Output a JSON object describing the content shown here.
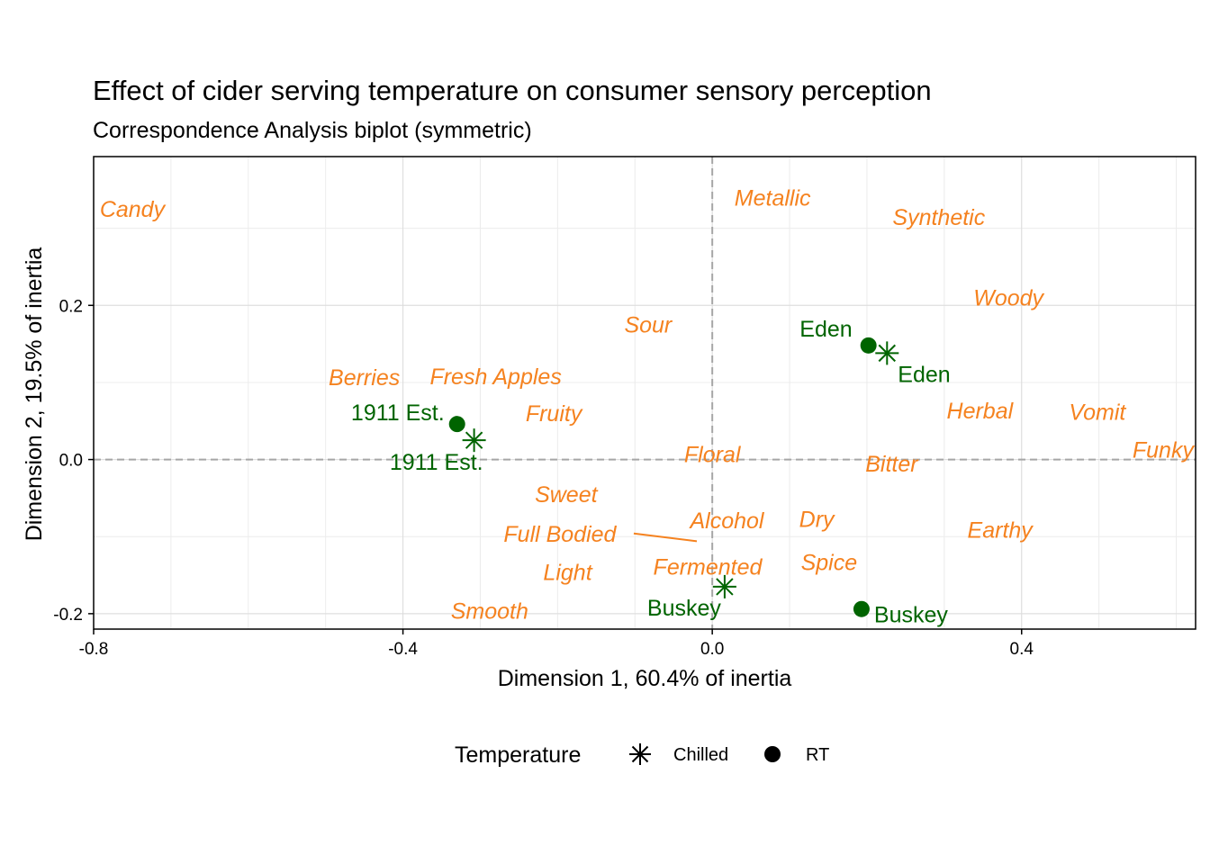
{
  "chart_data": {
    "type": "scatter",
    "title": "Effect of cider serving temperature on consumer sensory perception",
    "subtitle": "Correspondence Analysis biplot (symmetric)",
    "xlabel": "Dimension 1, 60.4% of inertia",
    "ylabel": "Dimension 2, 19.5% of inertia",
    "xlim": [
      -0.8,
      0.625
    ],
    "ylim": [
      -0.22,
      0.393
    ],
    "x_ticks": [
      -0.8,
      -0.4,
      0.0,
      0.4
    ],
    "x_tick_labels": [
      "-0.8",
      "-0.4",
      "0.0",
      "0.4"
    ],
    "y_ticks": [
      -0.2,
      0.0,
      0.2
    ],
    "y_tick_labels": [
      "-0.2",
      "0.0",
      "0.2"
    ],
    "grid": true,
    "reference_lines": {
      "x": 0,
      "y": 0,
      "style": "dashed"
    },
    "legend": {
      "title": "Temperature",
      "position": "bottom",
      "entries": [
        {
          "label": "Chilled",
          "shape": "asterisk"
        },
        {
          "label": "RT",
          "shape": "circle"
        }
      ]
    },
    "colors": {
      "attribute": "#f5821f",
      "cider": "#006400",
      "grid": "#dcdcdc",
      "ref_line": "#a6a6a6"
    },
    "attributes": [
      {
        "name": "Candy",
        "x": -0.75,
        "y": 0.325
      },
      {
        "name": "Metallic",
        "x": 0.078,
        "y": 0.34
      },
      {
        "name": "Synthetic",
        "x": 0.293,
        "y": 0.315
      },
      {
        "name": "Woody",
        "x": 0.383,
        "y": 0.21
      },
      {
        "name": "Sour",
        "x": -0.083,
        "y": 0.175
      },
      {
        "name": "Berries",
        "x": -0.45,
        "y": 0.107
      },
      {
        "name": "Fresh Apples",
        "x": -0.28,
        "y": 0.108
      },
      {
        "name": "Fruity",
        "x": -0.205,
        "y": 0.06
      },
      {
        "name": "Herbal",
        "x": 0.346,
        "y": 0.064
      },
      {
        "name": "Vomit",
        "x": 0.498,
        "y": 0.062
      },
      {
        "name": "Funky",
        "x": 0.583,
        "y": 0.013
      },
      {
        "name": "Floral",
        "x": 0.0,
        "y": 0.007
      },
      {
        "name": "Bitter",
        "x": 0.232,
        "y": -0.005
      },
      {
        "name": "Sweet",
        "x": -0.189,
        "y": -0.045
      },
      {
        "name": "Alcohol",
        "x": 0.019,
        "y": -0.079
      },
      {
        "name": "Dry",
        "x": 0.135,
        "y": -0.077
      },
      {
        "name": "Earthy",
        "x": 0.372,
        "y": -0.091
      },
      {
        "name": "Full Bodied",
        "x": -0.197,
        "y": -0.096,
        "point_x": -0.02,
        "point_y": -0.106
      },
      {
        "name": "Fermented",
        "x": -0.006,
        "y": -0.139
      },
      {
        "name": "Spice",
        "x": 0.151,
        "y": -0.133
      },
      {
        "name": "Light",
        "x": -0.187,
        "y": -0.146
      },
      {
        "name": "Smooth",
        "x": -0.288,
        "y": -0.196
      }
    ],
    "ciders": [
      {
        "name": "Eden",
        "temperature": "RT",
        "x": 0.202,
        "y": 0.148
      },
      {
        "name": "Eden",
        "temperature": "Chilled",
        "x": 0.226,
        "y": 0.138
      },
      {
        "name": "1911 Est.",
        "temperature": "RT",
        "x": -0.33,
        "y": 0.046
      },
      {
        "name": "1911 Est.",
        "temperature": "Chilled",
        "x": -0.308,
        "y": 0.025
      },
      {
        "name": "Buskey",
        "temperature": "RT",
        "x": 0.193,
        "y": -0.194
      },
      {
        "name": "Buskey",
        "temperature": "Chilled",
        "x": 0.016,
        "y": -0.165
      }
    ]
  }
}
